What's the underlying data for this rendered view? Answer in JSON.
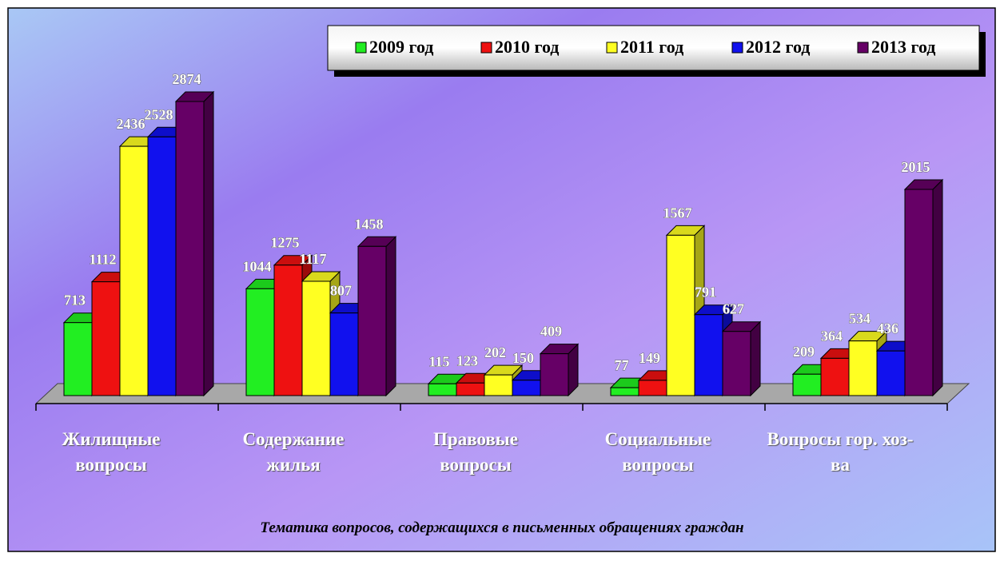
{
  "chart_data": {
    "type": "bar3d",
    "title": "Тематика вопросов, содержащихся в письменных обращениях граждан",
    "categories": [
      "Жилищные вопросы",
      "Содержание жилья",
      "Правовые вопросы",
      "Социальные вопросы",
      "Вопросы гор. хоз-ва"
    ],
    "series": [
      {
        "name": "2009 год",
        "color": "#22ee22",
        "values": [
          713,
          1044,
          115,
          77,
          209
        ]
      },
      {
        "name": "2010 год",
        "color": "#ee1111",
        "values": [
          1112,
          1275,
          123,
          149,
          364
        ]
      },
      {
        "name": "2011 год",
        "color": "#ffff22",
        "values": [
          2436,
          1117,
          202,
          1567,
          534
        ]
      },
      {
        "name": "2012 год",
        "color": "#1111ee",
        "values": [
          2528,
          807,
          150,
          791,
          436
        ]
      },
      {
        "name": "2013 год",
        "color": "#660066",
        "values": [
          2874,
          1458,
          409,
          627,
          2015
        ]
      }
    ],
    "legend": "top-right"
  }
}
